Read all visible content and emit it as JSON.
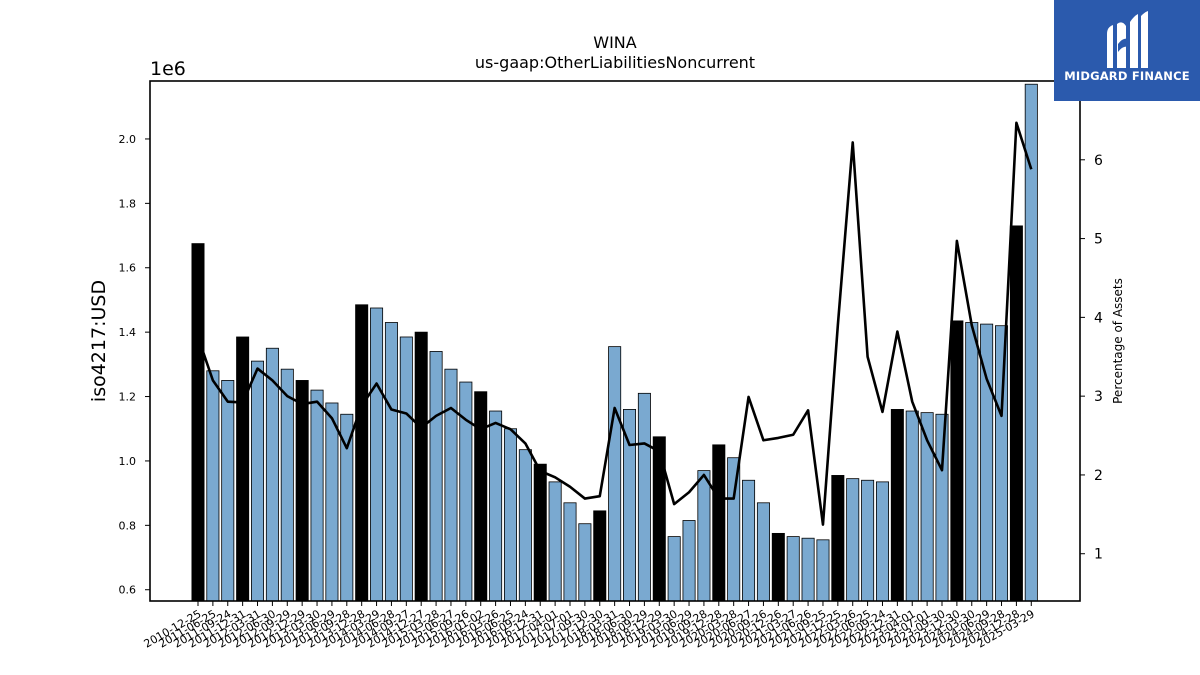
{
  "brand": {
    "name": "MIDGARD FINANCE",
    "logo_icon": "midgard-m-icon",
    "bg_color": "#2b5aad"
  },
  "chart_data": {
    "type": "bar",
    "title": "WINA",
    "subtitle": "us-gaap:OtherLiabilitiesNoncurrent",
    "ylabel": "iso4217:USD",
    "y_multiplier": "1e6",
    "y2label": "Percentage of Assets",
    "ylim": [
      0.565,
      2.18
    ],
    "y2lim": [
      0.4,
      7.0
    ],
    "yticks": [
      0.6,
      0.8,
      1.0,
      1.2,
      1.4,
      1.6,
      1.8,
      2.0
    ],
    "y2ticks": [
      1,
      2,
      3,
      4,
      5,
      6
    ],
    "colors": {
      "bar_default": "#7aa9d0",
      "bar_highlight": "#000000",
      "line": "#000000"
    },
    "categories": [
      "2010-12-25",
      "2011-06-25",
      "2011-09-24",
      "2011-12-31",
      "2012-03-31",
      "2012-06-30",
      "2012-09-29",
      "2012-12-29",
      "2013-03-30",
      "2013-06-29",
      "2013-09-28",
      "2013-12-28",
      "2014-03-29",
      "2014-06-28",
      "2014-09-27",
      "2014-12-27",
      "2015-03-28",
      "2015-06-27",
      "2015-09-26",
      "2016-01-02",
      "2016-03-26",
      "2016-06-25",
      "2016-09-24",
      "2016-12-31",
      "2017-04-01",
      "2017-07-01",
      "2017-09-30",
      "2017-12-30",
      "2018-03-31",
      "2018-06-30",
      "2018-09-29",
      "2018-12-29",
      "2019-03-30",
      "2019-06-29",
      "2019-09-28",
      "2019-12-28",
      "2020-03-28",
      "2020-06-27",
      "2020-09-26",
      "2020-12-26",
      "2021-03-27",
      "2021-06-26",
      "2021-09-25",
      "2021-12-25",
      "2022-03-26",
      "2022-06-25",
      "2022-09-24",
      "2022-12-31",
      "2023-04-01",
      "2023-07-01",
      "2023-09-30",
      "2023-12-30",
      "2024-03-30",
      "2024-06-29",
      "2024-09-28",
      "2024-12-28",
      "2025-03-29"
    ],
    "values": [
      1.675,
      1.28,
      1.25,
      1.385,
      1.31,
      1.35,
      1.285,
      1.25,
      1.22,
      1.18,
      1.145,
      1.485,
      1.475,
      1.43,
      1.385,
      1.4,
      1.34,
      1.285,
      1.245,
      1.215,
      1.155,
      1.1,
      1.035,
      0.99,
      0.935,
      0.87,
      0.805,
      0.845,
      1.355,
      1.16,
      1.21,
      1.075,
      0.765,
      0.815,
      0.97,
      1.05,
      1.01,
      0.94,
      0.87,
      0.775,
      0.765,
      0.76,
      0.755,
      0.955,
      0.945,
      0.94,
      0.935,
      1.16,
      1.155,
      1.15,
      1.145,
      1.435,
      1.43,
      1.425,
      1.42,
      1.73,
      2.17
    ],
    "highlight": [
      true,
      false,
      false,
      true,
      false,
      false,
      false,
      true,
      false,
      false,
      false,
      true,
      false,
      false,
      false,
      true,
      false,
      false,
      false,
      true,
      false,
      false,
      false,
      true,
      false,
      false,
      false,
      true,
      false,
      false,
      false,
      true,
      false,
      false,
      false,
      true,
      false,
      false,
      false,
      true,
      false,
      false,
      false,
      true,
      false,
      false,
      false,
      true,
      false,
      false,
      false,
      true,
      false,
      false,
      false,
      true,
      false
    ],
    "line_series": {
      "name": "Percentage of Assets",
      "values": [
        3.75,
        3.2,
        2.93,
        2.92,
        3.35,
        3.2,
        3.0,
        2.9,
        2.93,
        2.72,
        2.34,
        2.88,
        3.16,
        2.83,
        2.78,
        2.6,
        2.75,
        2.85,
        2.7,
        2.58,
        2.66,
        2.58,
        2.4,
        2.05,
        1.97,
        1.85,
        1.7,
        1.73,
        2.85,
        2.38,
        2.4,
        2.3,
        1.63,
        1.78,
        2.0,
        1.7,
        1.7,
        2.99,
        2.44,
        2.47,
        2.51,
        2.82,
        1.37,
        3.9,
        6.22,
        3.5,
        2.8,
        3.82,
        2.93,
        2.44,
        2.06,
        4.97,
        3.9,
        3.22,
        2.75,
        6.47,
        5.88
      ]
    }
  }
}
